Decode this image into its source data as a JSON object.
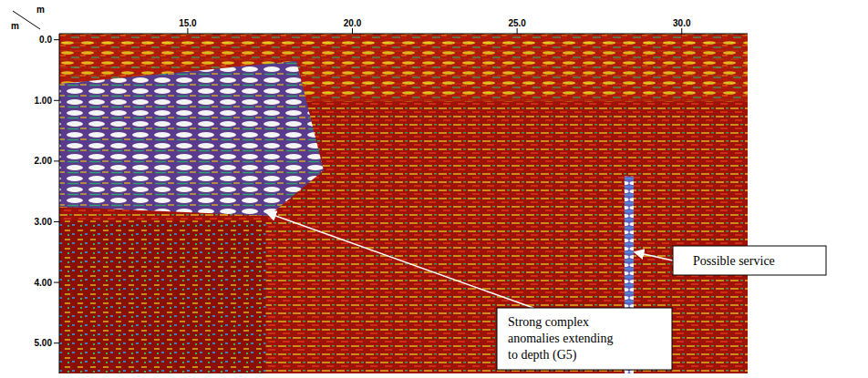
{
  "chart_data": {
    "type": "radargram",
    "x_label": "m",
    "y_label": "m",
    "xlim": [
      11.1,
      32.0
    ],
    "xticks": [
      {
        "value": 15,
        "label": "15.0"
      },
      {
        "value": 20,
        "label": "20.0"
      },
      {
        "value": 25,
        "label": "25.0"
      },
      {
        "value": 30,
        "label": "30.0"
      }
    ],
    "ylim": [
      -0.1,
      5.5
    ],
    "yticks": [
      {
        "value": 0,
        "label": "0.0"
      },
      {
        "value": 1,
        "label": "1.00"
      },
      {
        "value": 2,
        "label": "2.00"
      },
      {
        "value": 3,
        "label": "3.00"
      },
      {
        "value": 4,
        "label": "4.00"
      },
      {
        "value": 5,
        "label": "5.00"
      }
    ],
    "annotations": [
      {
        "text": "Strong complex anomalies extending to depth (G5)",
        "x": 17.4,
        "y": 2.85
      },
      {
        "text": "Possible service",
        "x": 28.4,
        "y": 3.5
      }
    ]
  }
}
